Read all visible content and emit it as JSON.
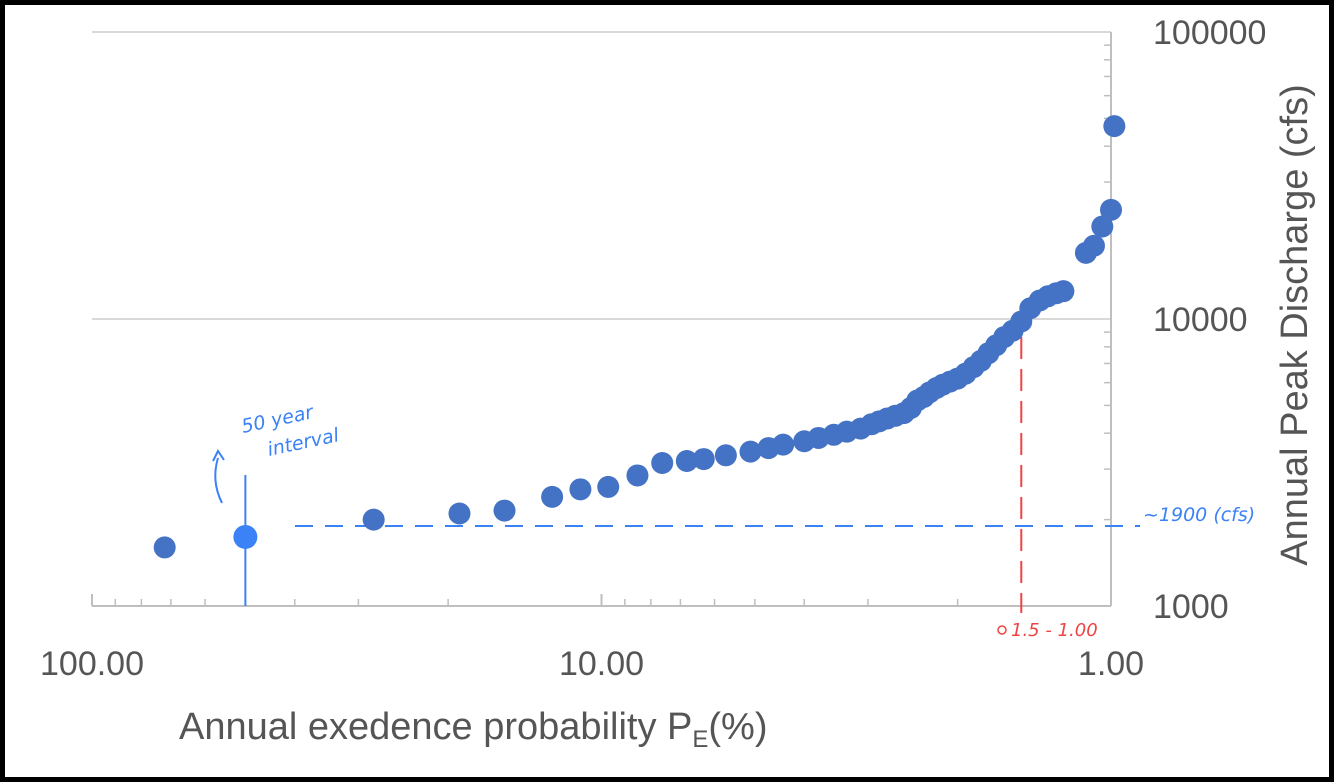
{
  "chart_data": {
    "type": "scatter",
    "title": "",
    "xlabel": "Annual exedence probability P",
    "xlabel_subscript": "E",
    "xlabel_suffix": "(%)",
    "ylabel": "Annual Peak Discharge (cfs)",
    "x_scale": "log",
    "x_reversed": true,
    "xlim": [
      100,
      1
    ],
    "y_scale": "log",
    "ylim": [
      1000,
      100000
    ],
    "x_tick_labels": [
      "100.00",
      "10.00",
      "1.00"
    ],
    "y_tick_labels": [
      "1000",
      "10000",
      "100000"
    ],
    "grid": "horizontal major only",
    "legend": "none",
    "colors": {
      "points": "#4472c4",
      "highlight_point": "#3b82f6",
      "annotation_blue": "#3b82f6",
      "annotation_red": "#ef4444"
    },
    "series": [
      {
        "points": [
          [
            72.0,
            1600
          ],
          [
            28.0,
            2000
          ],
          [
            19.0,
            2100
          ],
          [
            15.5,
            2150
          ],
          [
            12.5,
            2400
          ],
          [
            11.0,
            2550
          ],
          [
            9.7,
            2600
          ],
          [
            8.5,
            2850
          ],
          [
            7.6,
            3150
          ],
          [
            6.8,
            3200
          ],
          [
            6.3,
            3250
          ],
          [
            5.7,
            3350
          ],
          [
            5.1,
            3450
          ],
          [
            4.7,
            3550
          ],
          [
            4.4,
            3650
          ],
          [
            4.0,
            3750
          ],
          [
            3.75,
            3850
          ],
          [
            3.5,
            3950
          ],
          [
            3.3,
            4050
          ],
          [
            3.1,
            4150
          ],
          [
            2.95,
            4300
          ],
          [
            2.85,
            4400
          ],
          [
            2.75,
            4500
          ],
          [
            2.65,
            4600
          ],
          [
            2.55,
            4700
          ],
          [
            2.47,
            4900
          ],
          [
            2.4,
            5200
          ],
          [
            2.33,
            5350
          ],
          [
            2.27,
            5550
          ],
          [
            2.2,
            5750
          ],
          [
            2.14,
            5900
          ],
          [
            2.07,
            6050
          ],
          [
            2.0,
            6200
          ],
          [
            1.93,
            6450
          ],
          [
            1.86,
            6800
          ],
          [
            1.8,
            7150
          ],
          [
            1.74,
            7600
          ],
          [
            1.68,
            8100
          ],
          [
            1.62,
            8650
          ],
          [
            1.56,
            9100
          ],
          [
            1.5,
            9800
          ],
          [
            1.44,
            10900
          ],
          [
            1.38,
            11600
          ],
          [
            1.33,
            12000
          ],
          [
            1.28,
            12300
          ],
          [
            1.24,
            12500
          ],
          [
            1.12,
            17000
          ],
          [
            1.08,
            18000
          ],
          [
            1.04,
            21000
          ],
          [
            1.0,
            24000
          ],
          [
            0.985,
            47000
          ]
        ]
      }
    ],
    "highlight_point": [
      50.0,
      1740
    ],
    "annotations": {
      "return_interval": "50 year interval",
      "discharge_reading": "~1900 (cfs)",
      "red_marker": "1.5 - 1.00",
      "reference_discharge": 1900,
      "reference_probability": 1.5,
      "interval_probability": 50.0
    }
  }
}
